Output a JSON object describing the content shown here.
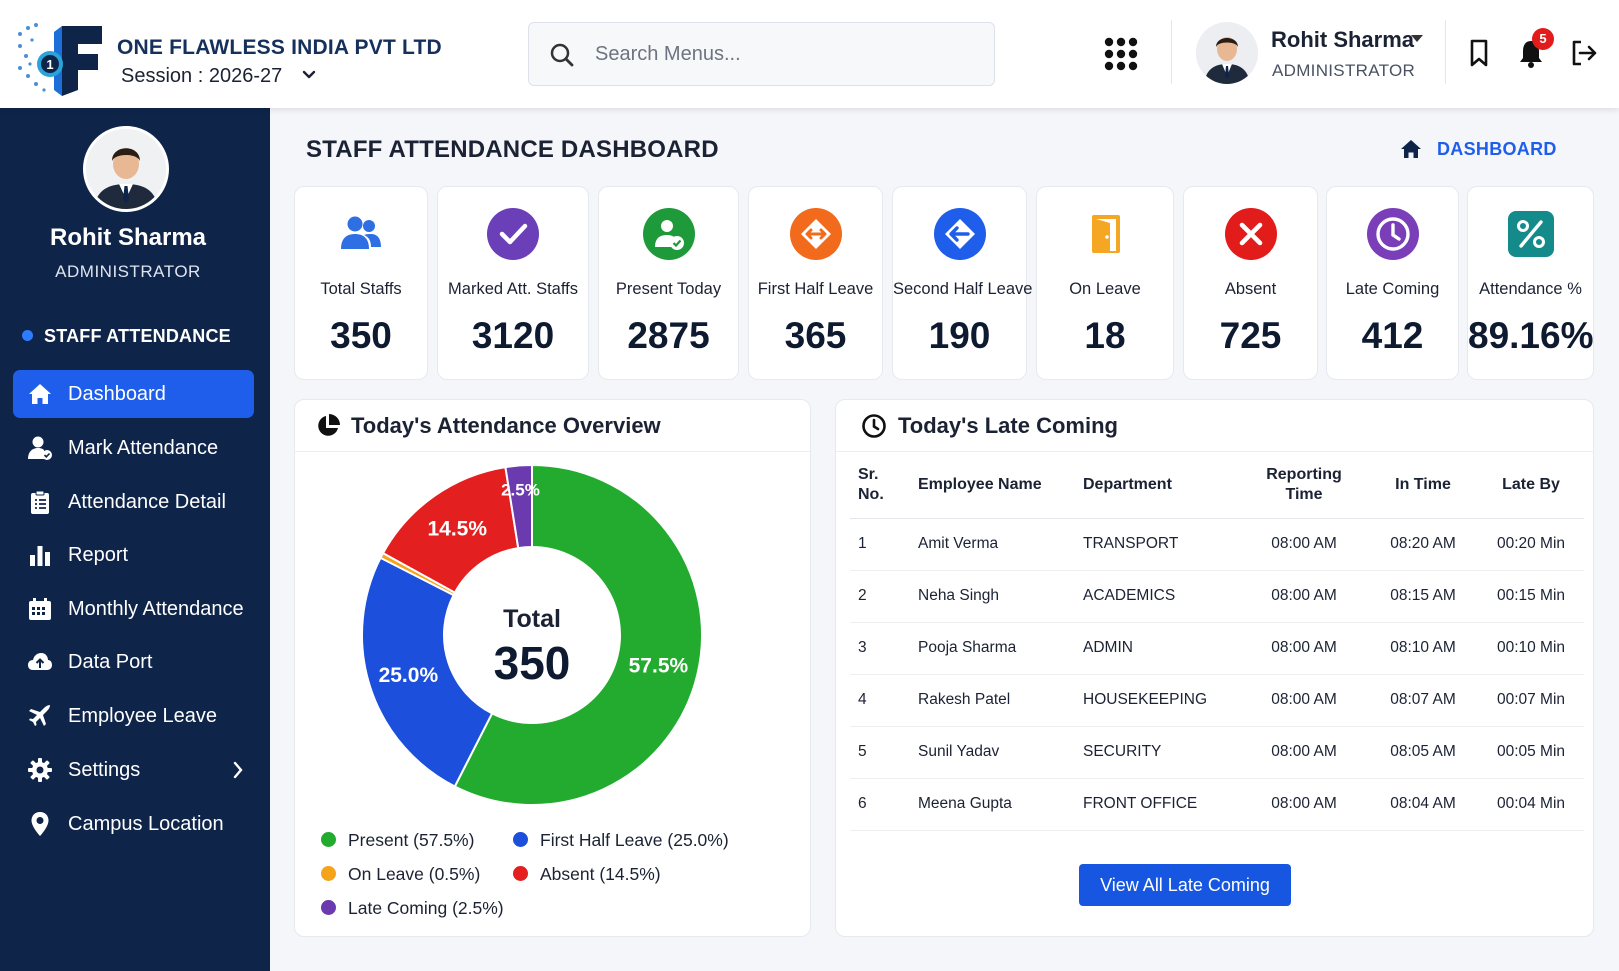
{
  "header": {
    "company": "ONE FLAWLESS INDIA PVT LTD",
    "session": "Session : 2026-27",
    "search_placeholder": "Search Menus...",
    "user_name": "Rohit Sharma",
    "user_role": "ADMINISTRATOR",
    "notification_count": "5"
  },
  "sidebar": {
    "name": "Rohit Sharma",
    "role": "ADMINISTRATOR",
    "section": "STAFF ATTENDANCE",
    "items": [
      {
        "label": "Dashboard",
        "icon": "home-icon",
        "active": true
      },
      {
        "label": "Mark Attendance",
        "icon": "user-check-icon"
      },
      {
        "label": "Attendance Detail",
        "icon": "clipboard-icon"
      },
      {
        "label": "Report",
        "icon": "bar-chart-icon"
      },
      {
        "label": "Monthly Attendance",
        "icon": "calendar-icon"
      },
      {
        "label": "Data Port",
        "icon": "cloud-upload-icon"
      },
      {
        "label": "Employee Leave",
        "icon": "plane-icon"
      },
      {
        "label": "Settings",
        "icon": "gear-icon"
      },
      {
        "label": "Campus Location",
        "icon": "map-pin-icon"
      }
    ]
  },
  "page": {
    "title": "STAFF ATTENDANCE DASHBOARD",
    "breadcrumb": "DASHBOARD"
  },
  "stats": [
    {
      "label": "Total Staffs",
      "value": "350",
      "icon": "users-icon",
      "color": "#2f6fe4"
    },
    {
      "label": "Marked Att. Staffs",
      "value": "3120",
      "icon": "check-circle-icon",
      "color": "#6a3fb8"
    },
    {
      "label": "Present Today",
      "value": "2875",
      "icon": "user-present-icon",
      "color": "#1e9a3a"
    },
    {
      "label": "First Half Leave",
      "value": "365",
      "icon": "arrows-lr-icon",
      "color": "#f26a1b"
    },
    {
      "label": "Second Half Leave",
      "value": "190",
      "icon": "arrow-left-icon",
      "color": "#1f5eea"
    },
    {
      "label": "On Leave",
      "value": "18",
      "icon": "door-icon",
      "color": "#f5a623"
    },
    {
      "label": "Absent",
      "value": "725",
      "icon": "x-circle-icon",
      "color": "#e21b1b"
    },
    {
      "label": "Late Coming",
      "value": "412",
      "icon": "clock-icon",
      "color": "#7a3fb8"
    },
    {
      "label": "Attendance %",
      "value": "89.16%",
      "icon": "percent-icon",
      "color": "#158a8a"
    }
  ],
  "overview": {
    "title": "Today's Attendance Overview",
    "center_label": "Total",
    "center_value": "350"
  },
  "chart_data": {
    "type": "pie",
    "title": "Today's Attendance Overview",
    "categories": [
      "Present",
      "First Half Leave",
      "On Leave",
      "Absent",
      "Late Coming"
    ],
    "values": [
      57.5,
      25.0,
      0.5,
      14.5,
      2.5
    ],
    "colors": [
      "#22ab2e",
      "#1c4fdb",
      "#f5a31a",
      "#e31f1f",
      "#6b3aae"
    ],
    "slice_labels": [
      "57.5%",
      "25.0%",
      "",
      "14.5%",
      "2.5%"
    ],
    "legend": [
      "Present (57.5%)",
      "First Half Leave (25.0%)",
      "On Leave (0.5%)",
      "Absent (14.5%)",
      "Late Coming (2.5%)"
    ],
    "legend_position": "bottom",
    "center_text": "Total 350"
  },
  "late": {
    "title": "Today's Late Coming",
    "columns": [
      "Sr. No.",
      "Employee Name",
      "Department",
      "Reporting Time",
      "In Time",
      "Late By"
    ],
    "rows": [
      [
        "1",
        "Amit Verma",
        "TRANSPORT",
        "08:00 AM",
        "08:20 AM",
        "00:20 Min"
      ],
      [
        "2",
        "Neha Singh",
        "ACADEMICS",
        "08:00 AM",
        "08:15 AM",
        "00:15 Min"
      ],
      [
        "3",
        "Pooja Sharma",
        "ADMIN",
        "08:00 AM",
        "08:10 AM",
        "00:10 Min"
      ],
      [
        "4",
        "Rakesh Patel",
        "HOUSEKEEPING",
        "08:00 AM",
        "08:07 AM",
        "00:07 Min"
      ],
      [
        "5",
        "Sunil Yadav",
        "SECURITY",
        "08:00 AM",
        "08:05 AM",
        "00:05 Min"
      ],
      [
        "6",
        "Meena Gupta",
        "FRONT OFFICE",
        "08:00 AM",
        "08:04 AM",
        "00:04 Min"
      ]
    ],
    "button": "View All Late Coming"
  }
}
